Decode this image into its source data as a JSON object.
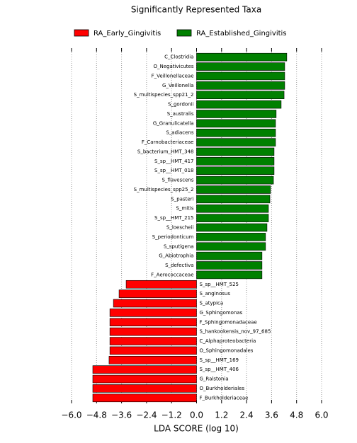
{
  "chart_data": {
    "type": "barh",
    "title": "Significantly Represented Taxa",
    "xlabel": "LDA SCORE (log 10)",
    "categories": [
      "C_Clostridia",
      "O_Negativicutes",
      "F_Veillonellaceae",
      "G_Veillonella",
      "S_multispecies_spp21_2",
      "S_gordonii",
      "S_australis",
      "G_Granulicatella",
      "S_adiacens",
      "F_Carnobacteriaceae",
      "S_bacterium_HMT_348",
      "S_sp__HMT_417",
      "S_sp__HMT_018",
      "S_flavescens",
      "S_multispecies_spp25_2",
      "S_pasteri",
      "S_mitis",
      "S_sp__HMT_215",
      "S_loescheii",
      "S_periodonticum",
      "S_sputigena",
      "G_Abiotrophia",
      "S_defectiva",
      "F_Aerococcaceae",
      "S_sp__HMT_525",
      "S_anginosus",
      "S_atypica",
      "G_Sphingomonas",
      "F_Sphingomonadaceae",
      "S_hankookensis_nov_97_685",
      "C_Alphaproteobacteria",
      "O_Sphingomonadales",
      "S_sp__HMT_169",
      "S_sp__HMT_406",
      "G_Ralstonia",
      "O_Burkholderiales",
      "F_Burkholderiaceae"
    ],
    "series": [
      {
        "name": "RA_Early_Gingivitis",
        "color": "#ff0000",
        "values": [
          null,
          null,
          null,
          null,
          null,
          null,
          null,
          null,
          null,
          null,
          null,
          null,
          null,
          null,
          null,
          null,
          null,
          null,
          null,
          null,
          null,
          null,
          null,
          null,
          -3.38,
          -3.72,
          -3.99,
          -4.16,
          -4.16,
          -4.16,
          -4.16,
          -4.16,
          -4.2,
          -4.98,
          -4.98,
          -4.98,
          -4.98
        ]
      },
      {
        "name": "RA_Established_Gingivitis",
        "color": "#008000",
        "values": [
          4.33,
          4.23,
          4.23,
          4.23,
          4.2,
          4.06,
          3.82,
          3.79,
          3.79,
          3.79,
          3.72,
          3.72,
          3.72,
          3.69,
          3.55,
          3.52,
          3.45,
          3.45,
          3.38,
          3.31,
          3.31,
          3.14,
          3.14,
          3.14,
          null,
          null,
          null,
          null,
          null,
          null,
          null,
          null,
          null,
          null,
          null,
          null,
          null
        ]
      }
    ],
    "xlim": [
      -6.0,
      6.0
    ],
    "xticks": [
      {
        "value": -6,
        "label": "−6.0"
      },
      {
        "value": -4.8,
        "label": "−4.8"
      },
      {
        "value": -3.6,
        "label": "−3.6"
      },
      {
        "value": -2.4,
        "label": "−2.4"
      },
      {
        "value": -1.2,
        "label": "−1.2"
      },
      {
        "value": 0,
        "label": "0.0"
      },
      {
        "value": 1.2,
        "label": "1.2"
      },
      {
        "value": 2.4,
        "label": "2.4"
      },
      {
        "value": 3.6,
        "label": "3.6"
      },
      {
        "value": 4.8,
        "label": "4.8"
      },
      {
        "value": 6,
        "label": "6.0"
      }
    ],
    "grid": true
  }
}
